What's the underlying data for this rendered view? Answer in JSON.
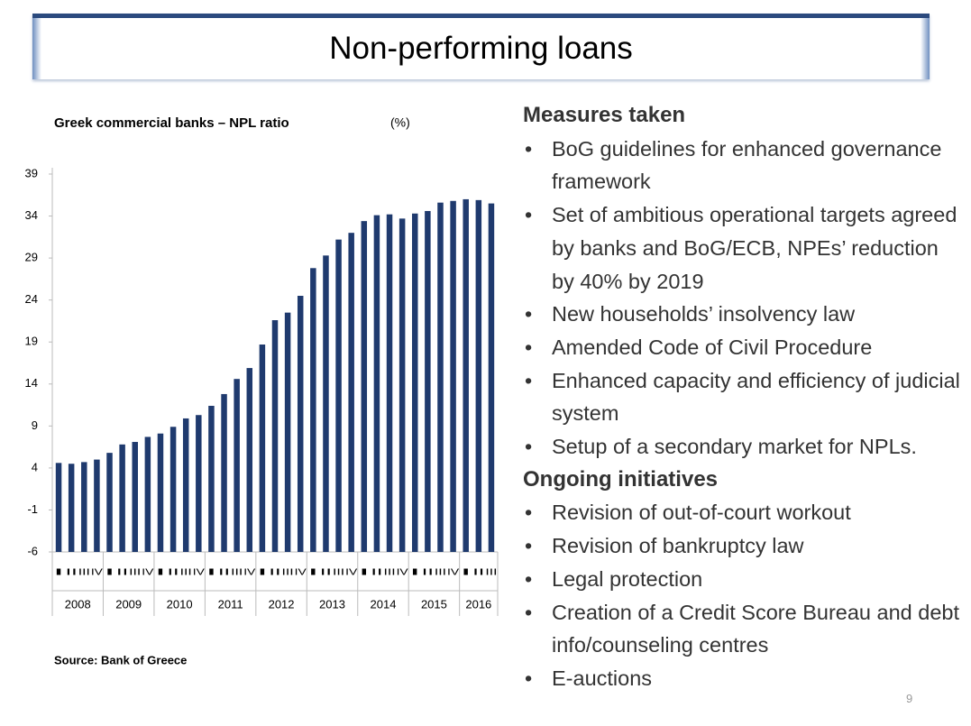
{
  "slide_title": "Non-performing loans",
  "chart_data": {
    "type": "bar",
    "title": "Greek commercial banks – NPL ratio",
    "unit": "(%)",
    "categories": [
      "I",
      "II",
      "III",
      "IV",
      "I",
      "II",
      "III",
      "IV",
      "I",
      "II",
      "III",
      "IV",
      "I",
      "II",
      "III",
      "IV",
      "I",
      "II",
      "III",
      "IV",
      "I",
      "II",
      "III",
      "IV",
      "I",
      "II",
      "III",
      "IV",
      "I",
      "II",
      "III",
      "IV",
      "I",
      "II",
      "III"
    ],
    "year_groups": [
      "2008",
      "2009",
      "2010",
      "2011",
      "2012",
      "2013",
      "2014",
      "2015",
      "2016"
    ],
    "values": [
      4.6,
      4.5,
      4.7,
      5.0,
      5.8,
      6.8,
      7.1,
      7.7,
      8.1,
      8.9,
      9.9,
      10.3,
      11.4,
      12.8,
      14.6,
      15.9,
      18.7,
      21.6,
      22.5,
      24.5,
      27.8,
      29.3,
      31.2,
      32.0,
      33.4,
      34.1,
      34.2,
      33.7,
      34.3,
      34.6,
      35.6,
      35.8,
      36.0,
      35.9,
      35.5
    ],
    "color": "#1f3a6e",
    "ylim": [
      -6,
      39
    ],
    "yticks": [
      -6,
      -1,
      4,
      9,
      14,
      19,
      24,
      29,
      34,
      39
    ],
    "grid": false,
    "source": "Source: Bank of Greece"
  },
  "measures": {
    "heading": "Measures taken",
    "items": [
      "BoG guidelines for enhanced governance framework",
      "Set of ambitious operational targets agreed by banks and BoG/ECB, NPEs’ reduction by 40% by 2019",
      "New households’ insolvency law",
      "Amended Code of Civil Procedure",
      "Enhanced capacity and efficiency of judicial system",
      "Setup of a secondary market for NPLs."
    ]
  },
  "initiatives": {
    "heading": "Ongoing initiatives",
    "items": [
      "Revision of out-of-court workout",
      "Revision of bankruptcy law",
      "Legal protection",
      "Creation of a Credit Score Bureau and debt info/counseling centres",
      "E-auctions"
    ]
  },
  "page_number": "9"
}
